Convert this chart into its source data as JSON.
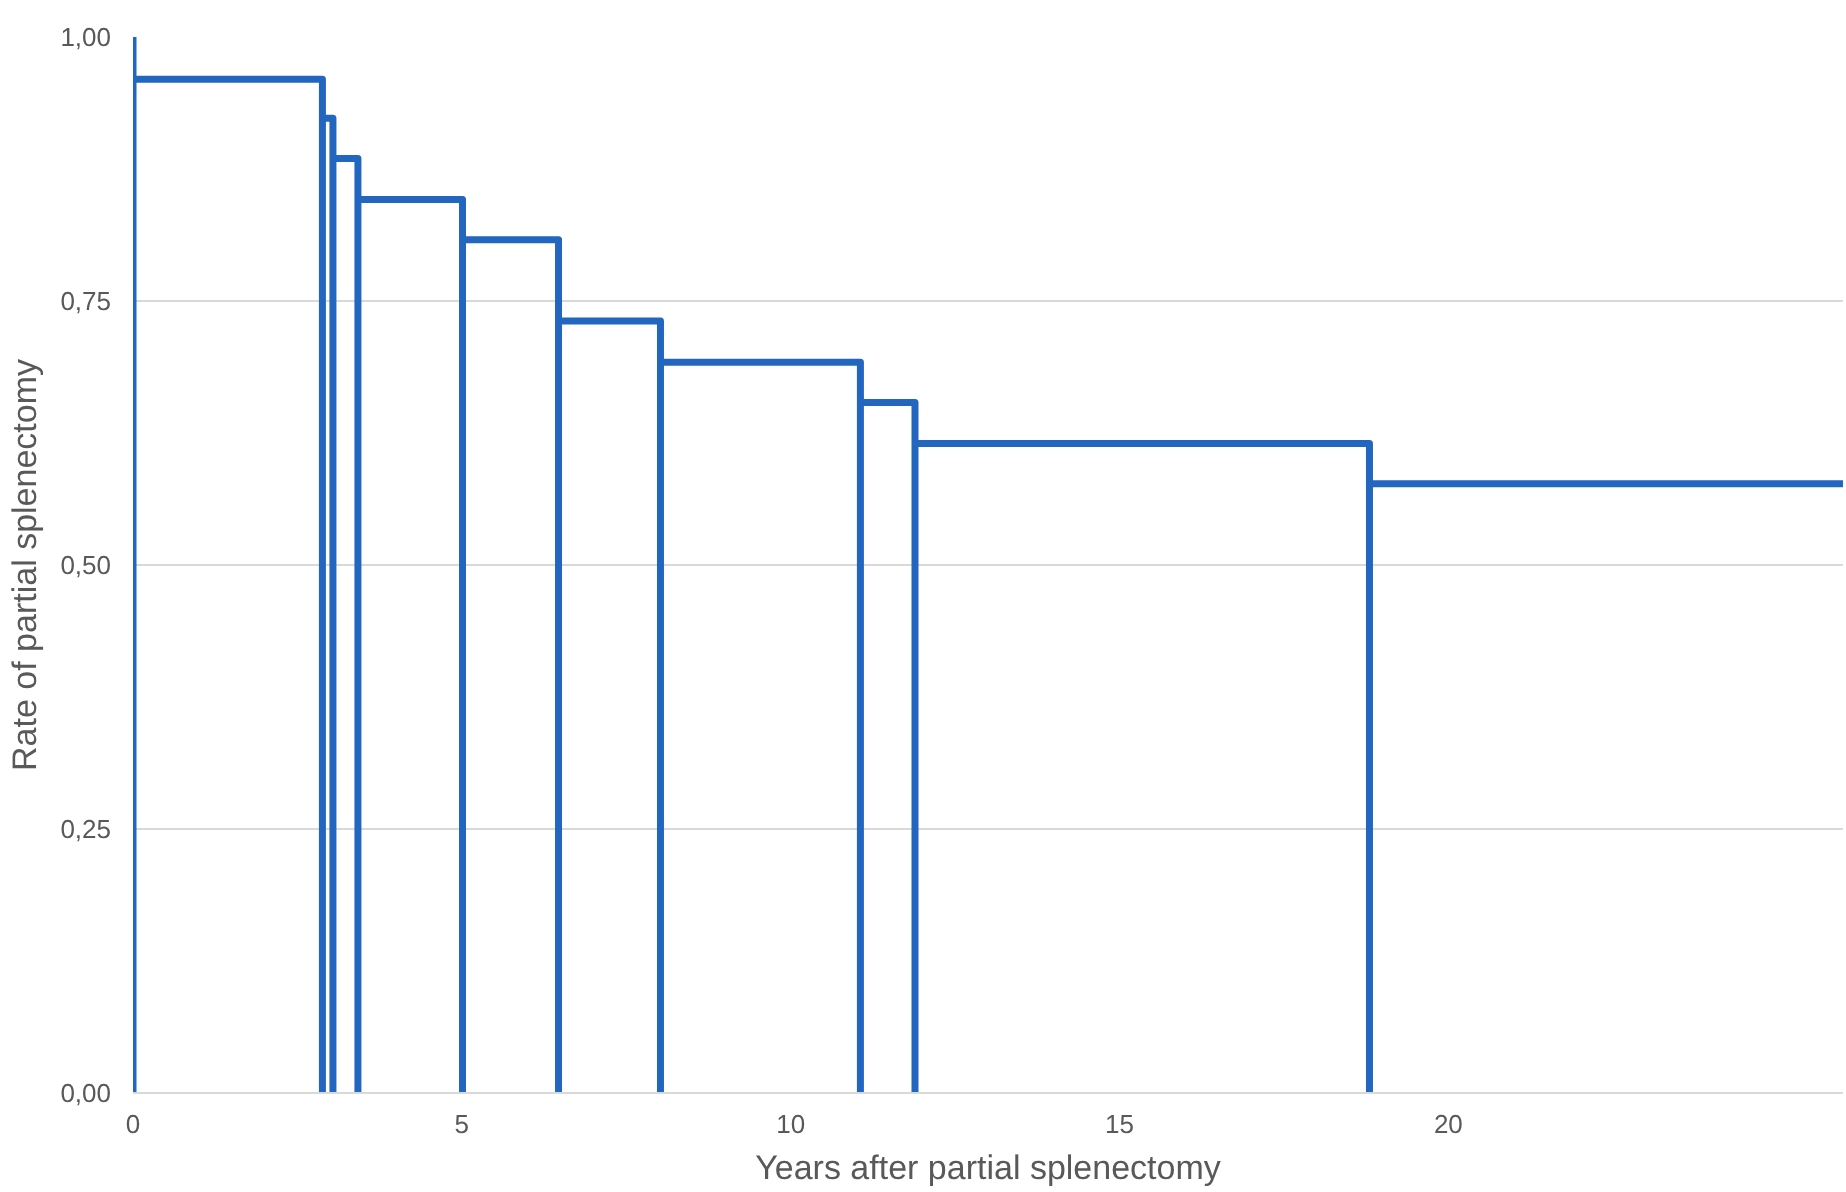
{
  "chart_data": {
    "type": "line",
    "xlabel": "Years after partial splenectomy",
    "ylabel": "Rate of partial splenectomy",
    "xlim": [
      0,
      26
    ],
    "ylim": [
      0,
      1
    ],
    "xticks": [
      0,
      5,
      10,
      15,
      20
    ],
    "yticks": [
      {
        "value": 0,
        "label": "0,00"
      },
      {
        "value": 0.25,
        "label": "0,25"
      },
      {
        "value": 0.5,
        "label": "0,50"
      },
      {
        "value": 0.75,
        "label": "0,75"
      },
      {
        "value": 1,
        "label": "1,00"
      }
    ],
    "grid": "y",
    "line_style": "solid",
    "marker": "none",
    "series": [
      {
        "color": "#2266c0",
        "x": [
          0,
          0,
          0,
          2.88,
          2.88,
          2.88,
          3.04,
          3.04,
          3.04,
          3.42,
          3.42,
          3.42,
          5.01,
          5.01,
          5.01,
          6.47,
          6.47,
          6.47,
          8.02,
          8.02,
          8.02,
          11.06,
          11.06,
          11.06,
          11.89,
          11.89,
          11.89,
          18.8,
          18.8,
          18.8,
          26
        ],
        "values": [
          0,
          1,
          0.96,
          0.96,
          0,
          0.923,
          0.923,
          0,
          0.885,
          0.885,
          0,
          0.846,
          0.846,
          0,
          0.808,
          0.808,
          0,
          0.731,
          0.731,
          0,
          0.692,
          0.692,
          0,
          0.654,
          0.654,
          0,
          0.615,
          0.615,
          0,
          0.577,
          0.577
        ]
      }
    ]
  }
}
